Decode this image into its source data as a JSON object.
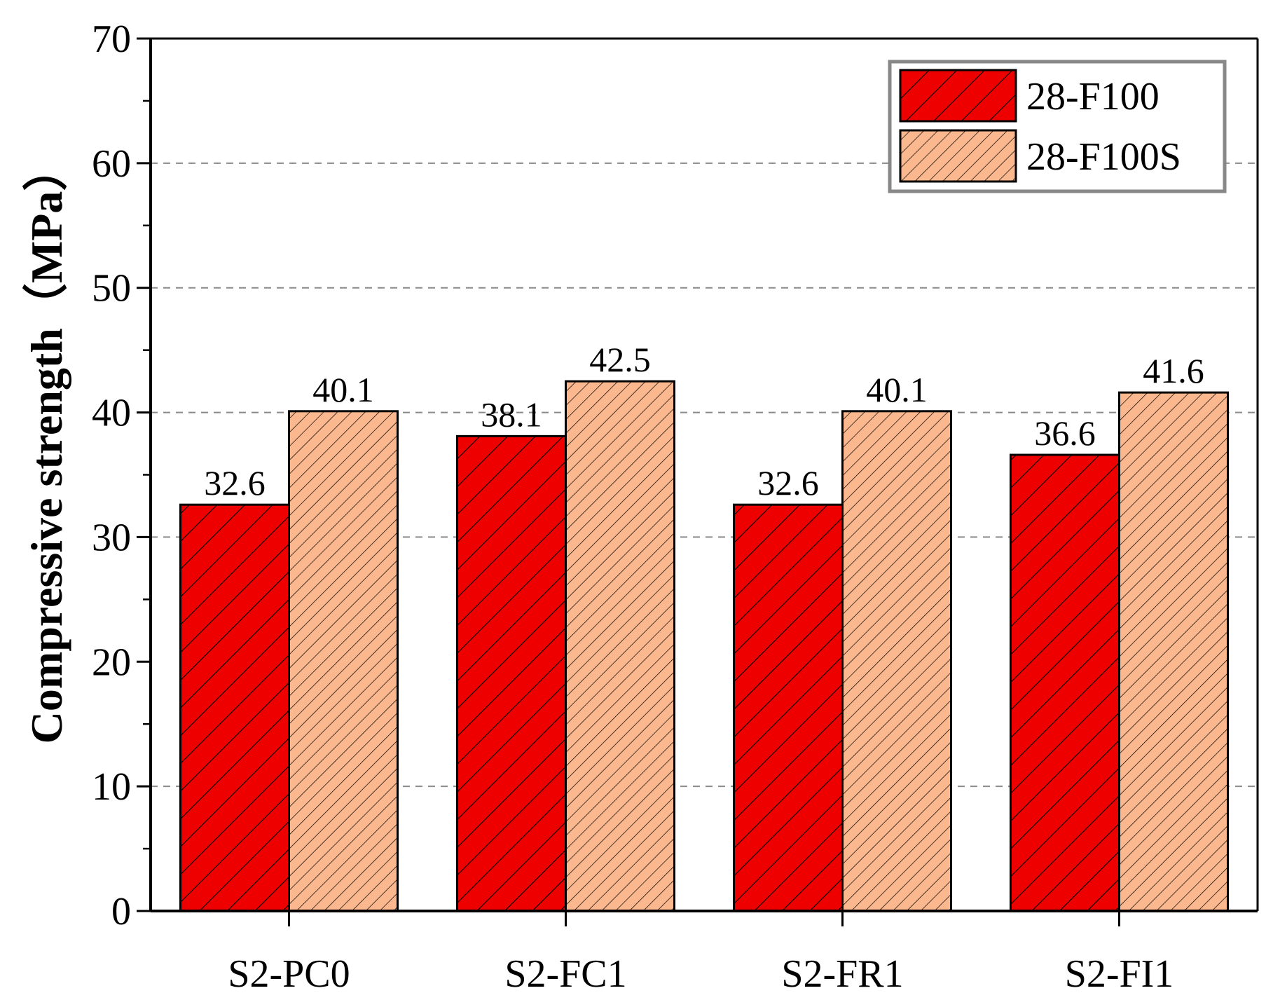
{
  "chart_data": {
    "type": "bar",
    "title": "",
    "xlabel": "",
    "ylabel": "Compressive strength（MPa）",
    "ylim": [
      0,
      70
    ],
    "yticks": [
      0,
      10,
      20,
      30,
      40,
      50,
      60,
      70
    ],
    "grid": "horizontal dashed at 10, 30, 40, 50, 60",
    "legend_position": "top-right",
    "categories": [
      "S2-PC0",
      "S2-FC1",
      "S2-FR1",
      "S2-FI1"
    ],
    "series": [
      {
        "name": "28-F100",
        "values": [
          32.6,
          38.1,
          32.6,
          36.6
        ],
        "labels": [
          "32.6",
          "38.1",
          "32.6",
          "36.6"
        ],
        "color": "#ee0000",
        "hatch": "dense"
      },
      {
        "name": "28-F100S",
        "values": [
          40.1,
          42.5,
          40.1,
          41.6
        ],
        "labels": [
          "40.1",
          "42.5",
          "40.1",
          "41.6"
        ],
        "color": "#fbb88e",
        "hatch": "fine"
      }
    ]
  }
}
